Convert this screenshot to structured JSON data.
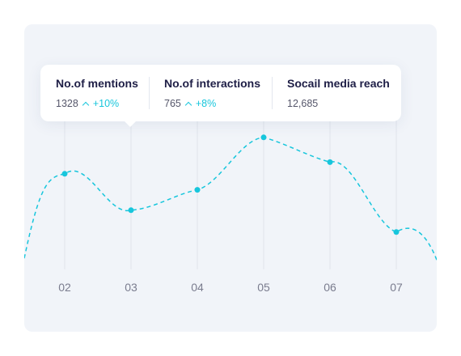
{
  "colors": {
    "line": "#17c6dc",
    "card_background": "#f1f4f9",
    "gridline": "#e1e5ec"
  },
  "tooltip": {
    "metrics": [
      {
        "title": "No.of mentions",
        "value": "1328",
        "change": "+10%",
        "icon": "caret-up-icon"
      },
      {
        "title": "No.of interactions",
        "value": "765",
        "change": "+8%",
        "icon": "caret-up-icon"
      },
      {
        "title": "Socail media reach",
        "value": "12,685"
      }
    ]
  },
  "chart_data": {
    "type": "line",
    "categories": [
      "02",
      "03",
      "04",
      "05",
      "06",
      "07"
    ],
    "series": [
      {
        "values": [
          0.64,
          0.39,
          0.53,
          0.89,
          0.72,
          0.24
        ]
      }
    ],
    "ylim": [
      0,
      1
    ],
    "line_style": "dashed",
    "grid": "vertical"
  }
}
